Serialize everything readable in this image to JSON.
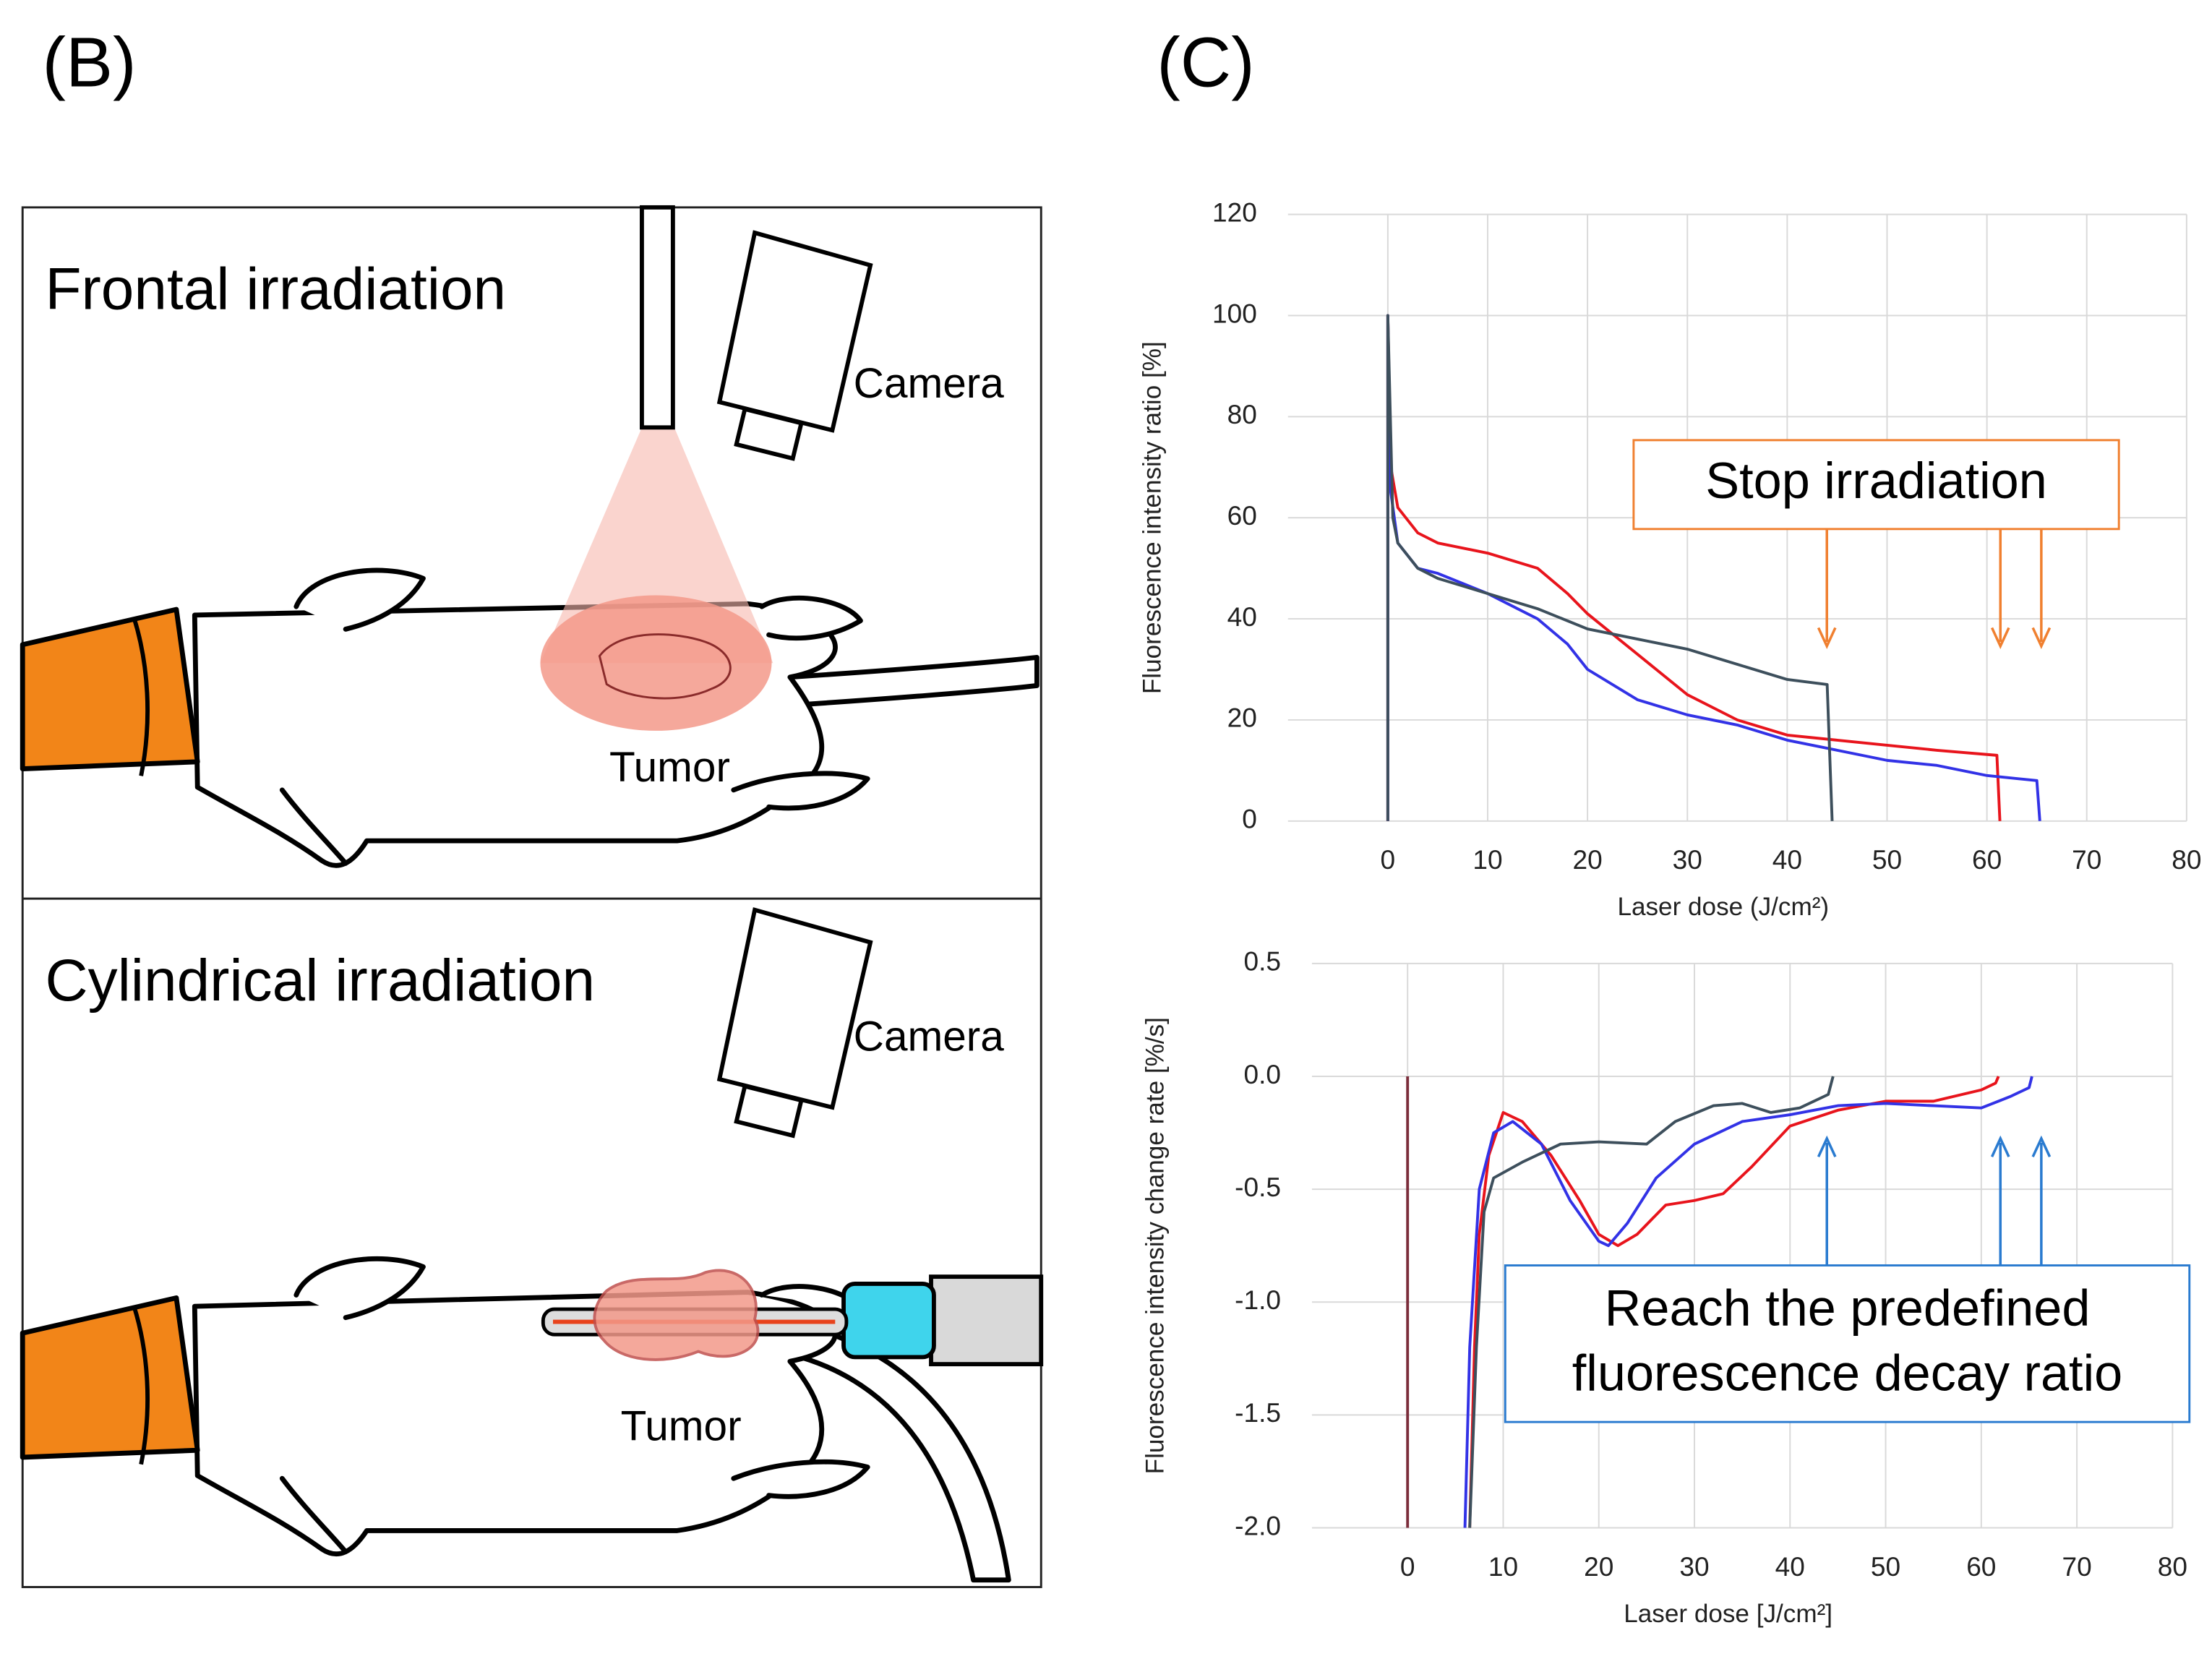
{
  "panel_labels": [
    "(B)",
    "(C)"
  ],
  "diagram": {
    "frontal": {
      "title": "Frontal irradiation",
      "camera": "Camera",
      "tumor": "Tumor"
    },
    "cylindrical": {
      "title": "Cylindrical irradiation",
      "camera": "Camera",
      "tumor": "Tumor"
    }
  },
  "chart_data": [
    {
      "type": "line",
      "xlabel": "Laser dose (J/cm²)",
      "ylabel": "Fluorescence intensity ratio [%]",
      "annotation": "Stop irradiation",
      "xlim": [
        -10,
        80
      ],
      "xticks": [
        0,
        10,
        20,
        30,
        40,
        50,
        60,
        70,
        80
      ],
      "ylim": [
        0,
        120
      ],
      "yticks": [
        0,
        20,
        40,
        60,
        80,
        100,
        120
      ],
      "grid": true,
      "series": [
        {
          "color": "#e8141c",
          "x": [
            0,
            0,
            0.3,
            1,
            3,
            5,
            10,
            15,
            18,
            20,
            25,
            30,
            35,
            40,
            45,
            50,
            55,
            61,
            61.3
          ],
          "values": [
            0,
            100,
            70,
            62,
            57,
            55,
            53,
            50,
            45,
            41,
            33,
            25,
            20,
            17,
            16,
            15,
            14,
            13,
            0
          ]
        },
        {
          "color": "#3232e6",
          "x": [
            0,
            0,
            0.3,
            1,
            3,
            5,
            10,
            15,
            18,
            20,
            25,
            30,
            35,
            40,
            45,
            50,
            55,
            60,
            65,
            65.3
          ],
          "values": [
            0,
            100,
            65,
            55,
            50,
            49,
            45,
            40,
            35,
            30,
            24,
            21,
            19,
            16,
            14,
            12,
            11,
            9,
            8,
            0
          ]
        },
        {
          "color": "#3d4f5c",
          "x": [
            0,
            0,
            0.5,
            1,
            3,
            5,
            10,
            15,
            20,
            25,
            30,
            35,
            40,
            44,
            44.5
          ],
          "values": [
            0,
            100,
            60,
            55,
            50,
            48,
            45,
            42,
            38,
            36,
            34,
            31,
            28,
            27,
            0
          ]
        }
      ]
    },
    {
      "type": "line",
      "xlabel": "Laser dose [J/cm²]",
      "ylabel": "Fluorescence intensity change rate [%/s]",
      "annotation": [
        "Reach the predefined",
        "fluorescence decay ratio"
      ],
      "xlim": [
        -10,
        80
      ],
      "xticks": [
        0,
        10,
        20,
        30,
        40,
        50,
        60,
        70,
        80
      ],
      "ylim": [
        -2,
        0.5
      ],
      "yticks": [
        {
          "value": -2,
          "label": "-2.0"
        },
        -1.5,
        {
          "value": -1,
          "label": "-1.0"
        },
        -0.5,
        {
          "value": 0,
          "label": "0.0"
        },
        0.5
      ],
      "grid": true,
      "series": [
        {
          "color": "#7b2d3b",
          "x": [
            0,
            0
          ],
          "values": [
            -2,
            0
          ]
        },
        {
          "color": "#e8141c",
          "x": [
            6.5,
            7,
            7.5,
            8.5,
            10,
            12,
            15,
            18,
            20,
            22,
            24,
            27,
            30,
            33,
            36,
            40,
            45,
            50,
            55,
            60,
            61.5,
            61.8
          ],
          "values": [
            -2,
            -1.2,
            -0.7,
            -0.35,
            -0.16,
            -0.2,
            -0.35,
            -0.55,
            -0.7,
            -0.75,
            -0.7,
            -0.57,
            -0.55,
            -0.52,
            -0.4,
            -0.22,
            -0.15,
            -0.11,
            -0.11,
            -0.06,
            -0.03,
            0
          ]
        },
        {
          "color": "#3232e6",
          "x": [
            6,
            6.5,
            7.5,
            9,
            11,
            14,
            17,
            20,
            21,
            23,
            26,
            30,
            35,
            40,
            45,
            50,
            55,
            60,
            63,
            65,
            65.3
          ],
          "values": [
            -2,
            -1.2,
            -0.5,
            -0.25,
            -0.2,
            -0.3,
            -0.55,
            -0.73,
            -0.75,
            -0.65,
            -0.45,
            -0.3,
            -0.2,
            -0.17,
            -0.13,
            -0.12,
            -0.13,
            -0.14,
            -0.09,
            -0.05,
            0
          ]
        },
        {
          "color": "#3d4f5c",
          "x": [
            6.5,
            7.2,
            8,
            9,
            12,
            16,
            20,
            25,
            28,
            32,
            35,
            38,
            41,
            44,
            44.5
          ],
          "values": [
            -2,
            -1.2,
            -0.6,
            -0.45,
            -0.38,
            -0.3,
            -0.29,
            -0.3,
            -0.2,
            -0.13,
            -0.12,
            -0.16,
            -0.14,
            -0.08,
            0
          ]
        }
      ]
    }
  ]
}
